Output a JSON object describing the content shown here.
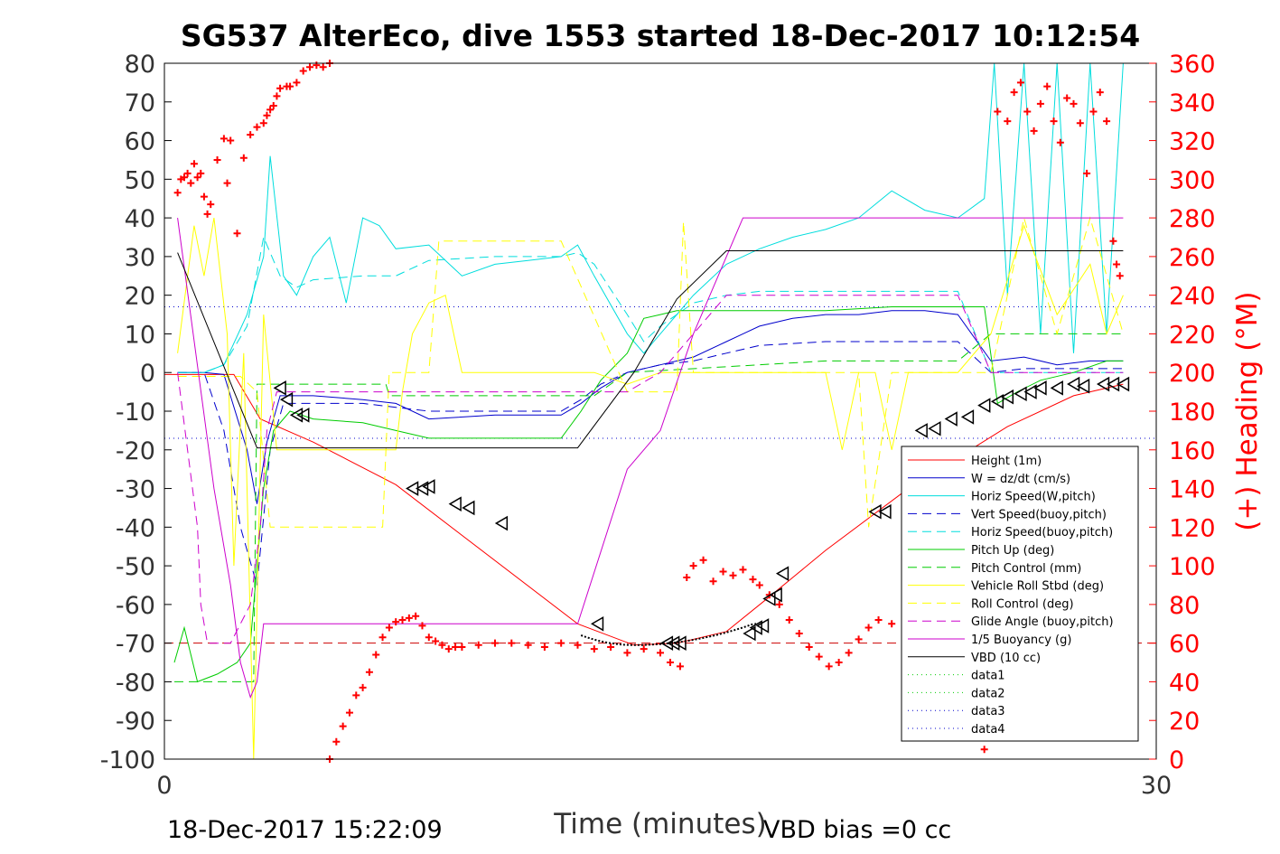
{
  "chart_data": {
    "type": "line",
    "title": "SG537 AlterEco, dive 1553 started 18-Dec-2017 10:12:54",
    "xlabel": "Time (minutes)",
    "ylabel_right": "(+) Heading (°M)",
    "footer_left": "18-Dec-2017 15:22:09",
    "footer_right": "VBD bias =0 cc",
    "xlim": [
      0,
      30
    ],
    "ylim": [
      -100,
      80
    ],
    "y2lim": [
      0,
      360
    ],
    "x_ticks": [
      0,
      30
    ],
    "x_tick_labels": [
      "0",
      "30"
    ],
    "y_ticks": [
      80,
      70,
      60,
      50,
      40,
      30,
      20,
      10,
      0,
      -10,
      -20,
      -30,
      -40,
      -50,
      -60,
      -70,
      -80,
      -90,
      -100
    ],
    "y_tick_labels": [
      "80",
      "70",
      "60",
      "50",
      "40",
      "30",
      "20",
      "10",
      "0",
      "-10",
      "-20",
      "-30",
      "-40",
      "-50",
      "-60",
      "-70",
      "-80",
      "-90",
      "-100"
    ],
    "y2_ticks": [
      360,
      340,
      320,
      300,
      280,
      260,
      240,
      220,
      200,
      180,
      160,
      140,
      120,
      100,
      80,
      60,
      40,
      20,
      0
    ],
    "y2_tick_labels": [
      "360",
      "340",
      "320",
      "300",
      "280",
      "260",
      "240",
      "220",
      "200",
      "180",
      "160",
      "140",
      "120",
      "100",
      "80",
      "60",
      "40",
      "20",
      "0"
    ],
    "grid": false,
    "legend_position": "bottom-right",
    "colors": {
      "axis": "#000000",
      "right_axis": "#ff0000"
    },
    "series": [
      {
        "name": "Height (1m)",
        "color": "#ff0000",
        "dash": "",
        "x": [
          0,
          2.1,
          2.9,
          4.5,
          7,
          12.5,
          14.2,
          15.5,
          17,
          18.3,
          20,
          22.5,
          25.5,
          27.5,
          29
        ],
        "y": [
          -0.5,
          -0.5,
          -12,
          -18,
          -29,
          -65,
          -70.5,
          -70,
          -67,
          -58,
          -46,
          -30,
          -14,
          -6,
          -3
        ]
      },
      {
        "name": "W = dz/dt (cm/s)",
        "color": "#0000cc",
        "dash": "",
        "x": [
          0.4,
          1.2,
          1.8,
          2.5,
          2.8,
          3.1,
          3.5,
          4.5,
          6,
          7,
          8,
          10,
          12,
          12.6,
          13.2,
          14,
          15,
          16,
          17,
          17.5,
          18,
          19,
          20,
          21,
          22,
          23,
          24,
          25,
          26,
          27,
          28,
          29
        ],
        "y": [
          0,
          0,
          -0.5,
          -20,
          -34,
          -18,
          -6,
          -6,
          -7,
          -8,
          -12,
          -11,
          -11,
          -8,
          -4,
          0,
          2,
          4,
          8,
          10,
          12,
          14,
          15,
          15,
          16,
          16,
          15,
          3,
          4,
          2,
          3,
          3
        ]
      },
      {
        "name": "Horiz Speed(W,pitch)",
        "color": "#00dddd",
        "dash": "",
        "x": [
          0.4,
          1.2,
          1.8,
          2.5,
          3.0,
          3.2,
          3.6,
          4.0,
          4.5,
          5.0,
          5.5,
          6.0,
          6.5,
          7.0,
          8.0,
          9.0,
          10.0,
          11.0,
          12.0,
          12.5,
          13.0,
          14.0,
          14.5,
          15.0,
          16.0,
          17.0,
          18.0,
          19.0,
          20.0,
          21.0,
          22.0,
          23.0,
          24.0,
          24.8,
          25.1,
          25.5,
          26.0,
          26.5,
          27.0,
          27.5,
          28.0,
          28.5,
          29.0
        ],
        "y": [
          0,
          0,
          2,
          15,
          30,
          56,
          25,
          20,
          30,
          35,
          18,
          40,
          38,
          32,
          33,
          25,
          28,
          29,
          30,
          33,
          25,
          10,
          5,
          10,
          20,
          28,
          32,
          35,
          37,
          40,
          47,
          42,
          40,
          45,
          80,
          20,
          80,
          10,
          80,
          5,
          80,
          10,
          80
        ]
      },
      {
        "name": "Vert Speed(buoy,pitch)",
        "color": "#0000cc",
        "dash": "10,6",
        "x": [
          0.4,
          1.2,
          1.8,
          2.3,
          2.8,
          3.2,
          3.6,
          4.5,
          6,
          7,
          8,
          10,
          12,
          12.6,
          13.2,
          14,
          15,
          16,
          17,
          18,
          20,
          22,
          24,
          25,
          26,
          27,
          28,
          29
        ],
        "y": [
          0,
          0,
          -15,
          -40,
          -55,
          -20,
          -8,
          -8,
          -8,
          -9,
          -10,
          -10,
          -10,
          -7,
          -3,
          0,
          2,
          3,
          5,
          7,
          8,
          8,
          8,
          0,
          1,
          1,
          1,
          1
        ]
      },
      {
        "name": "Horiz Speed(buoy,pitch)",
        "color": "#00dddd",
        "dash": "10,6",
        "x": [
          0.4,
          1.2,
          1.8,
          2.5,
          3.0,
          3.5,
          4.0,
          4.5,
          6.0,
          7.0,
          8.0,
          10.0,
          12.0,
          12.5,
          13.0,
          14.0,
          14.5,
          15.0,
          16.0,
          17.0,
          18.0,
          20.0,
          22.0,
          24.0,
          25.0,
          26.0,
          27.0,
          28.0,
          29.0
        ],
        "y": [
          0,
          0,
          2,
          12,
          35,
          25,
          22,
          24,
          25,
          25,
          29,
          30,
          30,
          31,
          28,
          15,
          8,
          12,
          18,
          20,
          21,
          21,
          21,
          21,
          0,
          0,
          0,
          0,
          0
        ]
      },
      {
        "name": "Pitch Up (deg)",
        "color": "#00cc00",
        "dash": "",
        "x": [
          0.3,
          0.6,
          1.0,
          1.6,
          2.2,
          2.6,
          3.0,
          3.3,
          3.8,
          4.5,
          6,
          7,
          8,
          10,
          12,
          12.6,
          13.2,
          14,
          14.5,
          15,
          15.5,
          16,
          18,
          20,
          22,
          24,
          24.8,
          25.2,
          25.8,
          26.5,
          27.5,
          28.5,
          29
        ],
        "y": [
          -75,
          -66,
          -80,
          -78,
          -75,
          -70,
          -30,
          -15,
          -10,
          -12,
          -13,
          -15,
          -17,
          -17,
          -17,
          -10,
          -2,
          5,
          14,
          15,
          16,
          16,
          16,
          16,
          17,
          17,
          17,
          -8,
          -5,
          -2,
          0,
          3,
          3
        ]
      },
      {
        "name": "Pitch Control (mm)",
        "color": "#00cc00",
        "dash": "10,6",
        "x": [
          0.3,
          2.7,
          2.8,
          6.7,
          6.8,
          13.0,
          14.0,
          20.0,
          24.0,
          25.0,
          29.0
        ],
        "y": [
          -80,
          -80,
          -3,
          -3,
          -6,
          -6,
          0,
          3,
          3,
          10,
          10
        ]
      },
      {
        "name": "Vehicle Roll Stbd (deg)",
        "color": "#ffff00",
        "dash": "",
        "x": [
          0.4,
          0.9,
          1.2,
          1.5,
          1.9,
          2.1,
          2.4,
          2.7,
          3.0,
          3.4,
          4,
          6,
          7,
          7.2,
          7.5,
          8.0,
          8.5,
          9.0,
          9.5,
          10,
          11,
          12,
          13,
          14,
          15,
          16,
          17,
          18,
          19,
          20,
          20.5,
          21,
          21.5,
          22,
          22.5,
          23,
          24,
          25,
          26,
          27,
          28,
          28.5,
          29
        ],
        "y": [
          5,
          38,
          25,
          40,
          10,
          -50,
          5,
          -100,
          15,
          -20,
          -20,
          -20,
          -20,
          -5,
          10,
          18,
          20,
          0,
          0,
          0,
          0,
          0,
          0,
          -3,
          0,
          0,
          0,
          0,
          0,
          0,
          -20,
          0,
          0,
          -20,
          0,
          0,
          0,
          10,
          38,
          15,
          28,
          10,
          20
        ]
      },
      {
        "name": "Roll Control (deg)",
        "color": "#ffff00",
        "dash": "10,6",
        "x": [
          0.4,
          1.2,
          2.3,
          2.8,
          3.2,
          6.6,
          6.8,
          8.0,
          8.3,
          12,
          14,
          15.5,
          15.7,
          16,
          17,
          18,
          20,
          21,
          21.3,
          22,
          24,
          25,
          26,
          27,
          28,
          29
        ],
        "y": [
          -1,
          -1,
          -1,
          -5,
          -40,
          -40,
          0,
          0,
          34,
          34,
          -5,
          -5,
          39,
          0,
          0,
          0,
          0,
          0,
          -40,
          0,
          0,
          0,
          40,
          10,
          40,
          10
        ]
      },
      {
        "name": "Glide Angle (buoy,pitch)",
        "color": "#cc00cc",
        "dash": "10,6",
        "x": [
          0.4,
          1.0,
          1.1,
          1.3,
          1.5,
          2.0,
          2.6,
          2.9,
          3.1,
          3.4,
          4,
          14,
          15,
          17,
          20,
          24,
          25,
          29
        ],
        "y": [
          0,
          -40,
          -60,
          -70,
          -70,
          -70,
          -60,
          -40,
          -15,
          -5,
          -5,
          -5,
          0,
          20,
          20,
          20,
          0,
          0
        ]
      },
      {
        "name": "1/5 Buoyancy (g)",
        "color": "#cc00cc",
        "dash": "",
        "x": [
          0.4,
          1.5,
          2.0,
          2.3,
          2.6,
          2.8,
          3.0,
          12.5,
          14.0,
          15.0,
          16.0,
          17.0,
          17.5,
          29.0
        ],
        "y": [
          40,
          -30,
          -55,
          -75,
          -84,
          -80,
          -65,
          -65,
          -25,
          -15,
          10,
          30,
          40,
          40
        ]
      },
      {
        "name": "VBD (10 cc)",
        "color": "#000000",
        "dash": "",
        "x": [
          0.4,
          2.8,
          4.0,
          12.5,
          14.2,
          15.5,
          17.0,
          29.0
        ],
        "y": [
          31,
          -19.5,
          -19.5,
          -19.5,
          0,
          19,
          31.5,
          31.5
        ]
      },
      {
        "name": "data1",
        "color": "#00cc00",
        "dash": "1,4",
        "x": [],
        "y": []
      },
      {
        "name": "data2",
        "color": "#00cc00",
        "dash": "1,4",
        "x": [],
        "y": []
      },
      {
        "name": "data3",
        "color": "#0000cc",
        "dash": "1,4",
        "x": [],
        "y": []
      },
      {
        "name": "data4",
        "color": "#0000cc",
        "dash": "1,4",
        "x": [],
        "y": []
      }
    ],
    "reference_lines": [
      {
        "y": 17,
        "color": "#0000cc",
        "dash": "1,4"
      },
      {
        "y": -17,
        "color": "#0000cc",
        "dash": "1,4"
      },
      {
        "y": -70,
        "color": "#cc0000",
        "dash": "10,6"
      }
    ],
    "heading_points": {
      "color": "#ff0000",
      "marker": "+",
      "x": [
        0.4,
        0.5,
        0.6,
        0.7,
        0.8,
        0.9,
        1.0,
        1.1,
        1.2,
        1.3,
        1.4,
        1.6,
        1.8,
        1.9,
        2.0,
        2.2,
        2.4,
        2.6,
        2.8,
        3.0,
        3.1,
        3.2,
        3.3,
        3.4,
        3.5,
        3.7,
        3.8,
        4.0,
        4.2,
        4.4,
        4.6,
        4.8,
        5.0,
        5.0,
        5.2,
        5.4,
        5.6,
        5.8,
        6.0,
        6.2,
        6.4,
        6.6,
        6.8,
        7.0,
        7.2,
        7.4,
        7.6,
        7.8,
        8.0,
        8.2,
        8.4,
        8.6,
        8.8,
        9.0,
        9.5,
        10.0,
        10.5,
        11.0,
        11.5,
        12.0,
        12.5,
        13.0,
        13.5,
        14.0,
        14.5,
        15.0,
        15.3,
        15.6,
        15.8,
        16.0,
        16.3,
        16.6,
        16.9,
        17.2,
        17.5,
        17.8,
        18.0,
        18.3,
        18.6,
        18.9,
        19.2,
        19.5,
        19.8,
        20.1,
        20.4,
        20.7,
        21.0,
        21.3,
        21.6,
        22.0,
        22.5,
        23.0,
        23.5,
        24.0,
        24.8,
        25.2,
        25.5,
        25.7,
        25.9,
        26.1,
        26.3,
        26.5,
        26.7,
        26.9,
        27.1,
        27.3,
        27.5,
        27.7,
        27.9,
        28.1,
        28.3,
        28.5,
        28.7,
        28.8,
        28.9
      ],
      "y": [
        293,
        300,
        301,
        303,
        298,
        308,
        301,
        303,
        291,
        282,
        287,
        310,
        321,
        298,
        320,
        272,
        311,
        323,
        327,
        329,
        333,
        336,
        338,
        343,
        347,
        348,
        348,
        350,
        356,
        358,
        359,
        358,
        360,
        0,
        9,
        17,
        24,
        33,
        37,
        45,
        54,
        63,
        68,
        71,
        72,
        73,
        74,
        69,
        63,
        61,
        59,
        57,
        58,
        58,
        59,
        60,
        60,
        59,
        58,
        60,
        59,
        57,
        58,
        55,
        57,
        55,
        50,
        48,
        94,
        100,
        103,
        92,
        97,
        95,
        98,
        93,
        90,
        85,
        80,
        72,
        65,
        58,
        53,
        48,
        50,
        55,
        62,
        68,
        72,
        70,
        64,
        58,
        55,
        55,
        5,
        335,
        330,
        345,
        350,
        335,
        325,
        339,
        348,
        330,
        319,
        342,
        339,
        329,
        303,
        335,
        345,
        330,
        268,
        256,
        250
      ]
    },
    "marker_points": {
      "color": "#000000",
      "marker": "triangle",
      "x": [
        3.5,
        3.7,
        4.0,
        4.2,
        7.5,
        7.8,
        8.0,
        8.8,
        9.2,
        10.2,
        13.1,
        15.2,
        15.4,
        15.6,
        17.7,
        17.9,
        18.1,
        18.3,
        18.5,
        18.7,
        21.5,
        21.8,
        22.5,
        22.9,
        23.3,
        23.8,
        24.3,
        24.8,
        25.2,
        25.5,
        25.9,
        26.2,
        26.5,
        27.0,
        27.5,
        27.8,
        28.4,
        28.7,
        29.0
      ],
      "y": [
        -4,
        -7,
        -11,
        -11,
        -30,
        -30,
        -29.5,
        -34,
        -35,
        -39,
        -65,
        -70,
        -70,
        -70,
        -67.5,
        -66,
        -65.5,
        -58.5,
        -57.5,
        -52,
        -36,
        -36,
        -32,
        -15,
        -14.5,
        -12,
        -11.5,
        -8.5,
        -7.5,
        -6.3,
        -5.5,
        -5,
        -4,
        -4,
        -3,
        -3.5,
        -3,
        -3,
        -3
      ]
    }
  }
}
